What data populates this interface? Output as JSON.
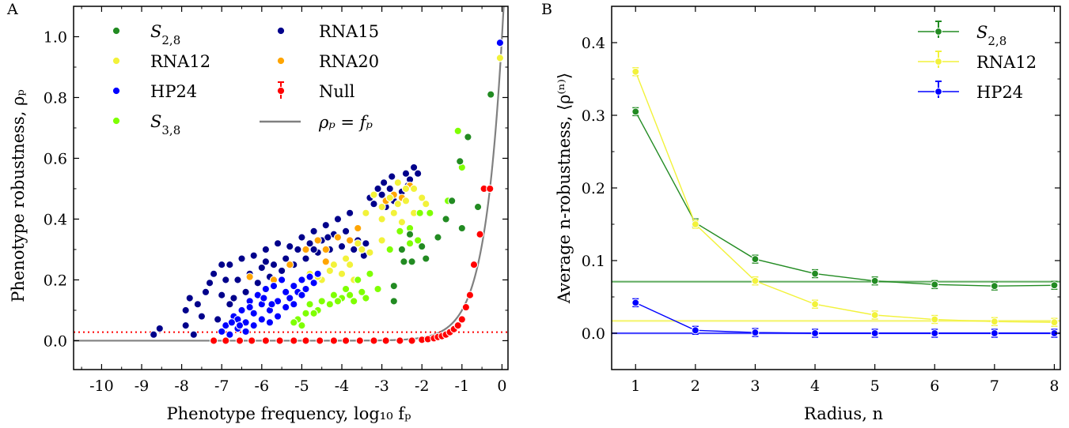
{
  "chart_data": [
    {
      "type": "scatter",
      "panel_label": "A",
      "xlabel": "Phenotype frequency, log₁₀ fₚ",
      "ylabel": "Phenotype robustness, ρₚ",
      "xlim": [
        -10.7,
        0.15
      ],
      "ylim": [
        -0.095,
        1.1
      ],
      "xticks": [
        -10,
        -9,
        -8,
        -7,
        -6,
        -5,
        -4,
        -3,
        -2,
        -1,
        0
      ],
      "yticks": [
        0.0,
        0.2,
        0.4,
        0.6,
        0.8,
        1.0
      ],
      "ytick_labels": [
        "0.0",
        "0.2",
        "0.4",
        "0.6",
        "0.8",
        "1.0"
      ],
      "legend_location": "upper-left",
      "reference_line": {
        "label": "ρₚ = fₚ",
        "color": "#808080"
      },
      "null_threshold": {
        "y": 0.028,
        "color": "#ff0000",
        "style": "dotted"
      },
      "series": [
        {
          "name": "S₂,₈",
          "color": "#228b22",
          "points": [
            [
              -0.28,
              0.81
            ],
            [
              -0.85,
              0.67
            ],
            [
              -1.05,
              0.59
            ],
            [
              -1.25,
              0.46
            ],
            [
              -0.6,
              0.44
            ],
            [
              -1.0,
              0.37
            ],
            [
              -1.4,
              0.4
            ],
            [
              -2.0,
              0.31
            ],
            [
              -2.45,
              0.26
            ],
            [
              -2.25,
              0.26
            ],
            [
              -2.7,
              0.18
            ],
            [
              -2.7,
              0.13
            ],
            [
              -2.3,
              0.35
            ],
            [
              -1.9,
              0.27
            ],
            [
              -2.5,
              0.3
            ],
            [
              -1.6,
              0.34
            ]
          ]
        },
        {
          "name": "RNA12",
          "color": "#f2f23a",
          "points": [
            [
              -0.05,
              0.93
            ],
            [
              -3.2,
              0.48
            ],
            [
              -3.0,
              0.44
            ],
            [
              -2.8,
              0.47
            ],
            [
              -2.6,
              0.45
            ],
            [
              -2.4,
              0.5
            ],
            [
              -2.2,
              0.5
            ],
            [
              -2.0,
              0.47
            ],
            [
              -3.4,
              0.42
            ],
            [
              -3.0,
              0.4
            ],
            [
              -2.7,
              0.42
            ],
            [
              -2.5,
              0.39
            ],
            [
              -2.2,
              0.42
            ],
            [
              -1.9,
              0.45
            ],
            [
              -3.5,
              0.3
            ],
            [
              -3.8,
              0.25
            ],
            [
              -4.0,
              0.22
            ],
            [
              -4.3,
              0.23
            ],
            [
              -4.5,
              0.2
            ],
            [
              -4.8,
              0.22
            ],
            [
              -3.6,
              0.32
            ],
            [
              -3.3,
              0.29
            ],
            [
              -3.9,
              0.27
            ],
            [
              -4.2,
              0.25
            ],
            [
              -4.6,
              0.21
            ],
            [
              -5.0,
              0.2
            ],
            [
              -3.7,
              0.2
            ],
            [
              -3.0,
              0.33
            ],
            [
              -2.4,
              0.46
            ],
            [
              -2.6,
              0.52
            ]
          ]
        },
        {
          "name": "HP24",
          "color": "#0000ff",
          "points": [
            [
              -0.05,
              0.98
            ],
            [
              -7.0,
              0.03
            ],
            [
              -6.8,
              0.02
            ],
            [
              -6.6,
              0.04
            ],
            [
              -6.4,
              0.06
            ],
            [
              -6.2,
              0.09
            ],
            [
              -6.0,
              0.12
            ],
            [
              -5.8,
              0.1
            ],
            [
              -5.6,
              0.13
            ],
            [
              -5.4,
              0.16
            ],
            [
              -5.2,
              0.18
            ],
            [
              -5.0,
              0.2
            ],
            [
              -4.8,
              0.21
            ],
            [
              -4.6,
              0.22
            ],
            [
              -6.7,
              0.08
            ],
            [
              -6.5,
              0.1
            ],
            [
              -6.3,
              0.13
            ],
            [
              -6.1,
              0.15
            ],
            [
              -5.9,
              0.17
            ],
            [
              -5.7,
              0.18
            ],
            [
              -5.5,
              0.2
            ],
            [
              -5.3,
              0.14
            ],
            [
              -5.1,
              0.16
            ],
            [
              -6.9,
              0.05
            ],
            [
              -6.6,
              0.07
            ],
            [
              -6.4,
              0.03
            ],
            [
              -6.2,
              0.05
            ],
            [
              -6.0,
              0.07
            ],
            [
              -5.8,
              0.06
            ],
            [
              -5.6,
              0.08
            ],
            [
              -5.4,
              0.11
            ],
            [
              -5.2,
              0.12
            ],
            [
              -5.0,
              0.15
            ],
            [
              -4.9,
              0.17
            ],
            [
              -6.3,
              0.11
            ],
            [
              -5.95,
              0.14
            ],
            [
              -5.75,
              0.12
            ],
            [
              -6.55,
              0.05
            ],
            [
              -6.75,
              0.06
            ],
            [
              -4.7,
              0.19
            ]
          ]
        },
        {
          "name": "S₃,₈",
          "color": "#7fff00",
          "points": [
            [
              -1.1,
              0.69
            ],
            [
              -1.0,
              0.57
            ],
            [
              -1.35,
              0.46
            ],
            [
              -1.8,
              0.42
            ],
            [
              -2.05,
              0.42
            ],
            [
              -2.3,
              0.37
            ],
            [
              -2.55,
              0.36
            ],
            [
              -2.1,
              0.33
            ],
            [
              -2.3,
              0.32
            ],
            [
              -2.8,
              0.3
            ],
            [
              -3.3,
              0.22
            ],
            [
              -3.6,
              0.2
            ],
            [
              -3.9,
              0.17
            ],
            [
              -4.2,
              0.15
            ],
            [
              -4.5,
              0.13
            ],
            [
              -4.8,
              0.12
            ],
            [
              -3.1,
              0.17
            ],
            [
              -3.4,
              0.14
            ],
            [
              -3.7,
              0.13
            ],
            [
              -4.0,
              0.14
            ],
            [
              -4.3,
              0.12
            ],
            [
              -4.6,
              0.1
            ],
            [
              -4.9,
              0.09
            ],
            [
              -5.1,
              0.07
            ],
            [
              -5.2,
              0.06
            ],
            [
              -5.0,
              0.05
            ],
            [
              -4.7,
              0.09
            ],
            [
              -3.5,
              0.16
            ],
            [
              -3.8,
              0.15
            ],
            [
              -4.1,
              0.13
            ]
          ]
        },
        {
          "name": "RNA15",
          "color": "#00008b",
          "points": [
            [
              -8.7,
              0.02
            ],
            [
              -8.55,
              0.04
            ],
            [
              -7.9,
              0.1
            ],
            [
              -7.8,
              0.14
            ],
            [
              -7.6,
              0.12
            ],
            [
              -7.4,
              0.16
            ],
            [
              -7.9,
              0.05
            ],
            [
              -7.3,
              0.19
            ],
            [
              -7.2,
              0.22
            ],
            [
              -7.0,
              0.25
            ],
            [
              -6.8,
              0.25
            ],
            [
              -6.5,
              0.27
            ],
            [
              -6.2,
              0.28
            ],
            [
              -5.9,
              0.3
            ],
            [
              -5.6,
              0.32
            ],
            [
              -5.3,
              0.31
            ],
            [
              -5.0,
              0.34
            ],
            [
              -4.7,
              0.36
            ],
            [
              -4.4,
              0.38
            ],
            [
              -4.1,
              0.4
            ],
            [
              -3.8,
              0.42
            ],
            [
              -7.5,
              0.08
            ],
            [
              -7.0,
              0.15
            ],
            [
              -6.9,
              0.2
            ],
            [
              -6.6,
              0.2
            ],
            [
              -6.3,
              0.22
            ],
            [
              -6.0,
              0.24
            ],
            [
              -5.7,
              0.25
            ],
            [
              -5.4,
              0.27
            ],
            [
              -5.1,
              0.3
            ],
            [
              -4.8,
              0.32
            ],
            [
              -4.5,
              0.33
            ],
            [
              -4.2,
              0.35
            ],
            [
              -3.9,
              0.36
            ],
            [
              -3.6,
              0.33
            ],
            [
              -6.8,
              0.12
            ],
            [
              -6.4,
              0.16
            ],
            [
              -6.1,
              0.19
            ],
            [
              -5.8,
              0.21
            ],
            [
              -5.5,
              0.23
            ],
            [
              -5.2,
              0.25
            ],
            [
              -4.9,
              0.27
            ],
            [
              -4.6,
              0.29
            ],
            [
              -4.3,
              0.3
            ],
            [
              -4.0,
              0.31
            ],
            [
              -3.7,
              0.3
            ],
            [
              -3.4,
              0.32
            ],
            [
              -3.2,
              0.45
            ],
            [
              -3.0,
              0.48
            ],
            [
              -2.8,
              0.5
            ],
            [
              -2.6,
              0.52
            ],
            [
              -2.4,
              0.55
            ],
            [
              -2.2,
              0.57
            ],
            [
              -2.1,
              0.55
            ],
            [
              -3.3,
              0.47
            ],
            [
              -2.9,
              0.44
            ],
            [
              -2.7,
              0.46
            ],
            [
              -2.5,
              0.49
            ],
            [
              -2.3,
              0.53
            ],
            [
              -3.1,
              0.5
            ],
            [
              -7.7,
              0.02
            ],
            [
              -7.1,
              0.07
            ],
            [
              -6.7,
              0.14
            ],
            [
              -5.9,
              0.26
            ],
            [
              -4.7,
              0.3
            ],
            [
              -4.35,
              0.34
            ],
            [
              -2.35,
              0.51
            ],
            [
              -2.75,
              0.54
            ],
            [
              -2.95,
              0.52
            ],
            [
              -3.45,
              0.28
            ]
          ]
        },
        {
          "name": "RNA20",
          "color": "#ffa500",
          "points": [
            [
              -6.3,
              0.21
            ],
            [
              -5.3,
              0.25
            ],
            [
              -4.9,
              0.3
            ],
            [
              -4.6,
              0.33
            ],
            [
              -4.4,
              0.3
            ],
            [
              -4.1,
              0.34
            ],
            [
              -3.8,
              0.33
            ],
            [
              -2.9,
              0.46
            ],
            [
              -2.7,
              0.48
            ],
            [
              -2.5,
              0.47
            ],
            [
              -2.3,
              0.51
            ],
            [
              -4.4,
              0.26
            ],
            [
              -5.7,
              0.2
            ],
            [
              -3.6,
              0.37
            ]
          ]
        },
        {
          "name": "Null",
          "color": "#ff0000",
          "points": [
            [
              -7.2,
              0.0
            ],
            [
              -6.9,
              0.0
            ],
            [
              -6.55,
              0.0
            ],
            [
              -6.25,
              0.0
            ],
            [
              -5.9,
              0.0
            ],
            [
              -5.55,
              0.0
            ],
            [
              -5.2,
              0.0
            ],
            [
              -4.9,
              0.0
            ],
            [
              -4.55,
              0.0
            ],
            [
              -4.2,
              0.0
            ],
            [
              -3.9,
              0.0
            ],
            [
              -3.55,
              0.0
            ],
            [
              -3.2,
              0.0
            ],
            [
              -2.9,
              0.0
            ],
            [
              -2.55,
              0.0
            ],
            [
              -2.25,
              0.0
            ],
            [
              -2.0,
              0.003
            ],
            [
              -1.85,
              0.005
            ],
            [
              -1.7,
              0.008
            ],
            [
              -1.6,
              0.012
            ],
            [
              -1.5,
              0.015
            ],
            [
              -1.4,
              0.02
            ],
            [
              -1.3,
              0.028
            ],
            [
              -1.2,
              0.038
            ],
            [
              -1.1,
              0.05
            ],
            [
              -1.0,
              0.07
            ],
            [
              -0.9,
              0.11
            ],
            [
              -0.8,
              0.15
            ],
            [
              -0.7,
              0.25
            ],
            [
              -0.55,
              0.35
            ],
            [
              -0.45,
              0.5
            ],
            [
              -0.3,
              0.5
            ]
          ]
        }
      ]
    },
    {
      "type": "line",
      "panel_label": "B",
      "xlabel": "Radius, n",
      "ylabel": "Average n-robustness, ⟨ρ⁽ⁿ⁾⟩",
      "xlim": [
        0.6,
        8.1
      ],
      "ylim": [
        -0.05,
        0.45
      ],
      "xticks": [
        1,
        2,
        3,
        4,
        5,
        6,
        7,
        8
      ],
      "yticks": [
        0.0,
        0.1,
        0.2,
        0.3,
        0.4
      ],
      "ytick_labels": [
        "0.0",
        "0.1",
        "0.2",
        "0.3",
        "0.4"
      ],
      "legend_location": "upper-right",
      "x": [
        1,
        2,
        3,
        4,
        5,
        6,
        7,
        8
      ],
      "series": [
        {
          "name": "S₂,₈",
          "color": "#228b22",
          "values": [
            0.305,
            0.152,
            0.102,
            0.082,
            0.072,
            0.067,
            0.065,
            0.066
          ],
          "baseline": 0.071
        },
        {
          "name": "RNA12",
          "color": "#f2f23a",
          "values": [
            0.36,
            0.15,
            0.072,
            0.04,
            0.025,
            0.019,
            0.016,
            0.015
          ],
          "baseline": 0.017
        },
        {
          "name": "HP24",
          "color": "#0000ff",
          "values": [
            0.042,
            0.004,
            0.001,
            0.0,
            0.0,
            0.0,
            0.0,
            0.0
          ],
          "baseline": 0.0
        }
      ]
    }
  ]
}
